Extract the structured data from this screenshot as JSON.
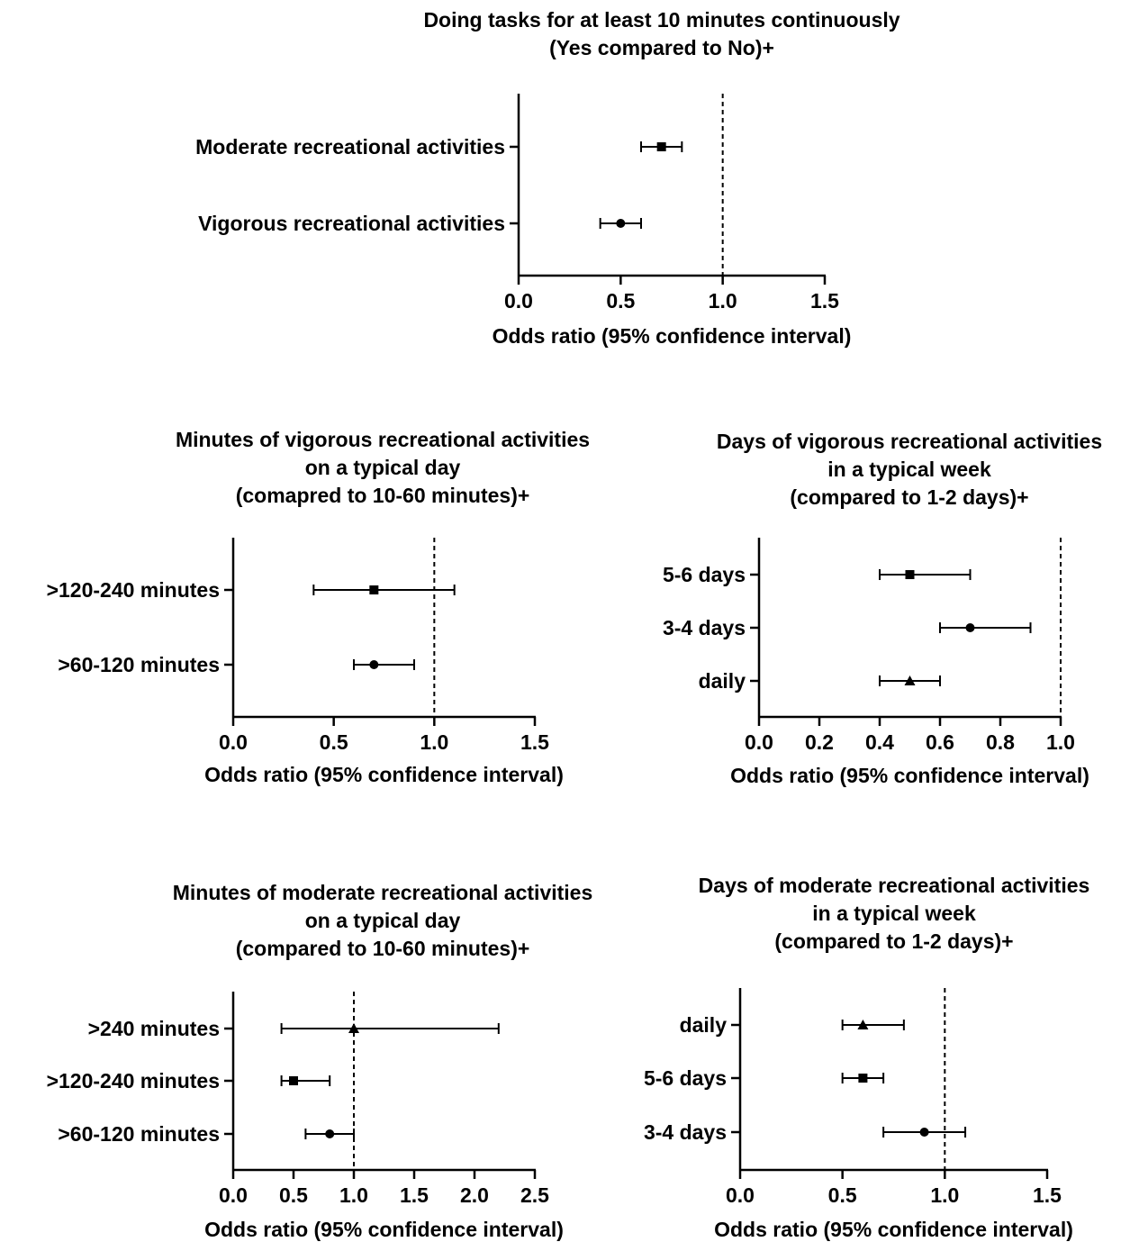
{
  "chart_data": [
    {
      "type": "forest",
      "title": [
        "Doing tasks for at least 10 minutes continuously",
        "(Yes compared to No)+"
      ],
      "xlabel": "Odds ratio (95% confidence interval)",
      "xlim": [
        0,
        1.5
      ],
      "xticks": [
        "0.0",
        "0.5",
        "1.0",
        "1.5"
      ],
      "reference_line": 1.0,
      "rows": [
        {
          "label": "Moderate recreational activities",
          "or": 0.7,
          "lo": 0.6,
          "hi": 0.8,
          "marker": "square"
        },
        {
          "label": "Vigorous recreational activities",
          "or": 0.5,
          "lo": 0.4,
          "hi": 0.6,
          "marker": "circle"
        }
      ]
    },
    {
      "type": "forest",
      "title": [
        "Minutes of vigorous recreational activities",
        "on a typical day",
        "(comapred to 10-60 minutes)+"
      ],
      "xlabel": "Odds ratio (95% confidence interval)",
      "xlim": [
        0,
        1.5
      ],
      "xticks": [
        "0.0",
        "0.5",
        "1.0",
        "1.5"
      ],
      "reference_line": 1.0,
      "rows": [
        {
          "label": ">120-240 minutes",
          "or": 0.7,
          "lo": 0.4,
          "hi": 1.1,
          "marker": "square"
        },
        {
          "label": ">60-120 minutes",
          "or": 0.7,
          "lo": 0.6,
          "hi": 0.9,
          "marker": "circle"
        }
      ]
    },
    {
      "type": "forest",
      "title": [
        "Days of vigorous recreational activities",
        "in a typical week",
        "(compared to 1-2 days)+"
      ],
      "xlabel": "Odds ratio (95% confidence interval)",
      "xlim": [
        0,
        1.0
      ],
      "xticks": [
        "0.0",
        "0.2",
        "0.4",
        "0.6",
        "0.8",
        "1.0"
      ],
      "reference_line": 1.0,
      "rows": [
        {
          "label": "5-6 days",
          "or": 0.5,
          "lo": 0.4,
          "hi": 0.7,
          "marker": "square"
        },
        {
          "label": "3-4 days",
          "or": 0.7,
          "lo": 0.6,
          "hi": 0.9,
          "marker": "circle"
        },
        {
          "label": "daily",
          "or": 0.5,
          "lo": 0.4,
          "hi": 0.6,
          "marker": "triangle"
        }
      ]
    },
    {
      "type": "forest",
      "title": [
        "Minutes of moderate recreational activities",
        "on a typical day",
        "(compared to 10-60 minutes)+"
      ],
      "xlabel": "Odds ratio (95% confidence interval)",
      "xlim": [
        0,
        2.5
      ],
      "xticks": [
        "0.0",
        "0.5",
        "1.0",
        "1.5",
        "2.0",
        "2.5"
      ],
      "reference_line": 1.0,
      "rows": [
        {
          "label": ">240 minutes",
          "or": 1.0,
          "lo": 0.4,
          "hi": 2.2,
          "marker": "triangle"
        },
        {
          "label": ">120-240 minutes",
          "or": 0.5,
          "lo": 0.4,
          "hi": 0.8,
          "marker": "square"
        },
        {
          "label": ">60-120 minutes",
          "or": 0.8,
          "lo": 0.6,
          "hi": 1.0,
          "marker": "circle"
        }
      ]
    },
    {
      "type": "forest",
      "title": [
        "Days of moderate recreational activities",
        "in a typical week",
        "(compared to 1-2 days)+"
      ],
      "xlabel": "Odds ratio (95% confidence interval)",
      "xlim": [
        0,
        1.5
      ],
      "xticks": [
        "0.0",
        "0.5",
        "1.0",
        "1.5"
      ],
      "reference_line": 1.0,
      "rows": [
        {
          "label": "daily",
          "or": 0.6,
          "lo": 0.5,
          "hi": 0.8,
          "marker": "triangle"
        },
        {
          "label": "5-6 days",
          "or": 0.6,
          "lo": 0.5,
          "hi": 0.7,
          "marker": "square"
        },
        {
          "label": "3-4 days",
          "or": 0.9,
          "lo": 0.7,
          "hi": 1.1,
          "marker": "circle"
        }
      ]
    }
  ]
}
